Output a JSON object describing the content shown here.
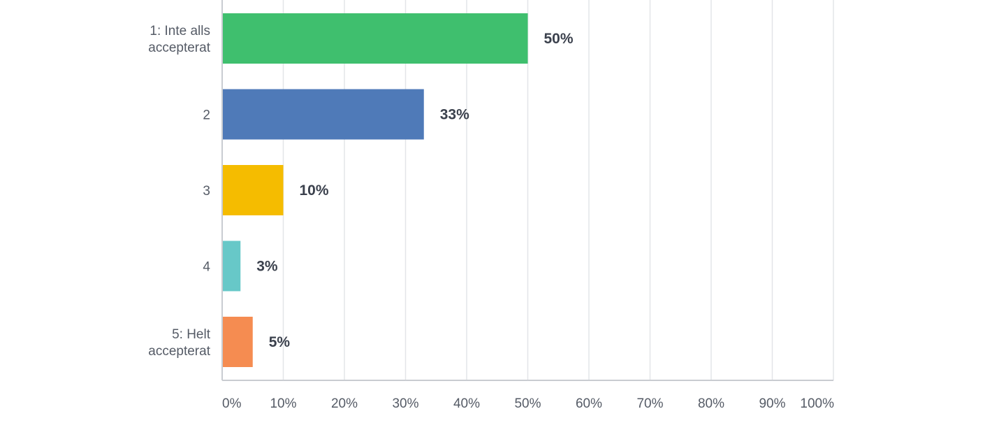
{
  "chart_data": {
    "type": "bar",
    "orientation": "horizontal",
    "categories": [
      [
        "1: Inte alls",
        "accepterat"
      ],
      [
        "2"
      ],
      [
        "3"
      ],
      [
        "4"
      ],
      [
        "5: Helt",
        "accepterat"
      ]
    ],
    "values": [
      50,
      33,
      10,
      3,
      5
    ],
    "value_labels": [
      "50%",
      "33%",
      "10%",
      "3%",
      "5%"
    ],
    "colors": [
      "#3fbf6e",
      "#4f7ab8",
      "#f5bc00",
      "#67c8c8",
      "#f58c51"
    ],
    "xlim": [
      0,
      100
    ],
    "xticks": [
      0,
      10,
      20,
      30,
      40,
      50,
      60,
      70,
      80,
      90,
      100
    ],
    "xtick_labels": [
      "0%",
      "10%",
      "20%",
      "30%",
      "40%",
      "50%",
      "60%",
      "70%",
      "80%",
      "90%",
      "100%"
    ],
    "grid": true,
    "title": "",
    "xlabel": "",
    "ylabel": ""
  }
}
